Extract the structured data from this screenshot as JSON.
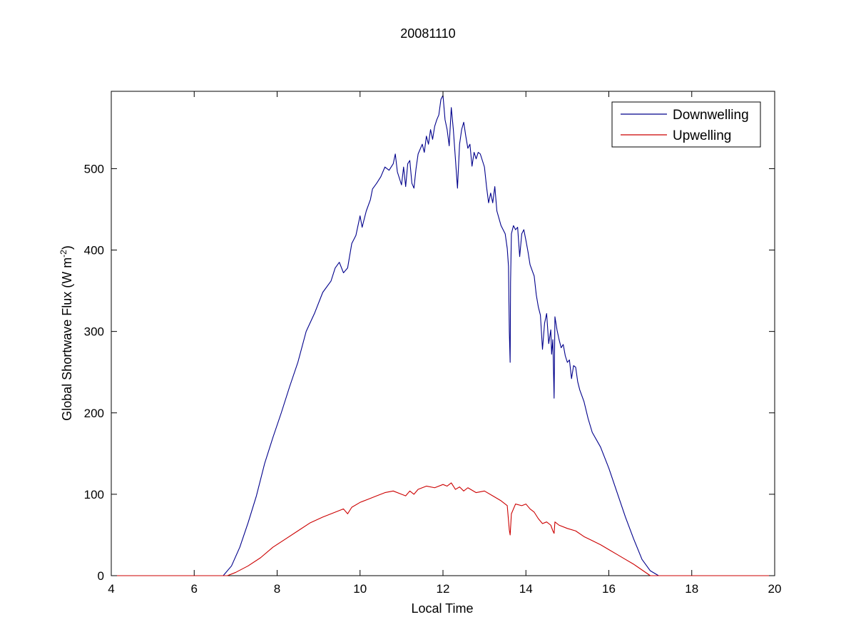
{
  "chart_data": {
    "type": "line",
    "title": "20081110",
    "xlabel": "Local Time",
    "ylabel": {
      "main": "Global Shortwave Flux (W m",
      "sup": "-2",
      "close": ")"
    },
    "xlim": [
      4,
      20
    ],
    "ylim": [
      0,
      595
    ],
    "xticks": [
      4,
      6,
      8,
      10,
      12,
      14,
      16,
      18,
      20
    ],
    "yticks": [
      0,
      100,
      200,
      300,
      400,
      500
    ],
    "grid": false,
    "legend_position": "top-right",
    "series": [
      {
        "name": "Downwelling",
        "color": "#00008b",
        "points": [
          [
            4.0,
            0
          ],
          [
            6.5,
            0
          ],
          [
            6.7,
            0
          ],
          [
            6.9,
            12
          ],
          [
            7.1,
            35
          ],
          [
            7.3,
            65
          ],
          [
            7.5,
            98
          ],
          [
            7.7,
            138
          ],
          [
            7.9,
            170
          ],
          [
            8.1,
            200
          ],
          [
            8.3,
            232
          ],
          [
            8.5,
            262
          ],
          [
            8.7,
            300
          ],
          [
            8.9,
            322
          ],
          [
            9.1,
            348
          ],
          [
            9.3,
            362
          ],
          [
            9.4,
            378
          ],
          [
            9.5,
            385
          ],
          [
            9.6,
            372
          ],
          [
            9.7,
            378
          ],
          [
            9.8,
            408
          ],
          [
            9.9,
            418
          ],
          [
            10.0,
            442
          ],
          [
            10.05,
            428
          ],
          [
            10.15,
            448
          ],
          [
            10.25,
            462
          ],
          [
            10.3,
            475
          ],
          [
            10.4,
            482
          ],
          [
            10.5,
            490
          ],
          [
            10.6,
            502
          ],
          [
            10.7,
            498
          ],
          [
            10.8,
            506
          ],
          [
            10.85,
            518
          ],
          [
            10.9,
            496
          ],
          [
            11.0,
            480
          ],
          [
            11.05,
            502
          ],
          [
            11.1,
            478
          ],
          [
            11.15,
            506
          ],
          [
            11.2,
            510
          ],
          [
            11.25,
            482
          ],
          [
            11.3,
            476
          ],
          [
            11.35,
            500
          ],
          [
            11.4,
            518
          ],
          [
            11.5,
            530
          ],
          [
            11.55,
            520
          ],
          [
            11.6,
            540
          ],
          [
            11.65,
            530
          ],
          [
            11.7,
            548
          ],
          [
            11.75,
            536
          ],
          [
            11.8,
            552
          ],
          [
            11.85,
            560
          ],
          [
            11.9,
            566
          ],
          [
            11.95,
            585
          ],
          [
            12.0,
            590
          ],
          [
            12.05,
            560
          ],
          [
            12.1,
            548
          ],
          [
            12.15,
            528
          ],
          [
            12.2,
            575
          ],
          [
            12.25,
            548
          ],
          [
            12.3,
            512
          ],
          [
            12.35,
            476
          ],
          [
            12.4,
            530
          ],
          [
            12.45,
            548
          ],
          [
            12.5,
            557
          ],
          [
            12.55,
            540
          ],
          [
            12.6,
            525
          ],
          [
            12.65,
            530
          ],
          [
            12.7,
            503
          ],
          [
            12.75,
            520
          ],
          [
            12.8,
            512
          ],
          [
            12.85,
            520
          ],
          [
            12.9,
            518
          ],
          [
            13.0,
            502
          ],
          [
            13.05,
            478
          ],
          [
            13.1,
            458
          ],
          [
            13.15,
            470
          ],
          [
            13.2,
            458
          ],
          [
            13.25,
            478
          ],
          [
            13.3,
            448
          ],
          [
            13.4,
            430
          ],
          [
            13.5,
            420
          ],
          [
            13.55,
            402
          ],
          [
            13.58,
            380
          ],
          [
            13.6,
            300
          ],
          [
            13.62,
            262
          ],
          [
            13.63,
            360
          ],
          [
            13.65,
            420
          ],
          [
            13.7,
            430
          ],
          [
            13.75,
            425
          ],
          [
            13.8,
            428
          ],
          [
            13.85,
            392
          ],
          [
            13.9,
            420
          ],
          [
            13.95,
            425
          ],
          [
            14.0,
            412
          ],
          [
            14.05,
            398
          ],
          [
            14.1,
            382
          ],
          [
            14.2,
            368
          ],
          [
            14.25,
            345
          ],
          [
            14.3,
            330
          ],
          [
            14.35,
            320
          ],
          [
            14.4,
            278
          ],
          [
            14.45,
            310
          ],
          [
            14.5,
            322
          ],
          [
            14.55,
            285
          ],
          [
            14.6,
            302
          ],
          [
            14.62,
            272
          ],
          [
            14.65,
            290
          ],
          [
            14.68,
            218
          ],
          [
            14.7,
            318
          ],
          [
            14.75,
            302
          ],
          [
            14.8,
            290
          ],
          [
            14.85,
            280
          ],
          [
            14.9,
            284
          ],
          [
            14.95,
            270
          ],
          [
            15.0,
            262
          ],
          [
            15.05,
            265
          ],
          [
            15.1,
            242
          ],
          [
            15.15,
            258
          ],
          [
            15.2,
            256
          ],
          [
            15.25,
            238
          ],
          [
            15.3,
            228
          ],
          [
            15.4,
            214
          ],
          [
            15.5,
            193
          ],
          [
            15.6,
            176
          ],
          [
            15.8,
            158
          ],
          [
            16.0,
            132
          ],
          [
            16.2,
            102
          ],
          [
            16.4,
            72
          ],
          [
            16.6,
            45
          ],
          [
            16.8,
            20
          ],
          [
            17.0,
            6
          ],
          [
            17.2,
            0
          ],
          [
            20.0,
            0
          ]
        ]
      },
      {
        "name": "Upwelling",
        "color": "#cc0000",
        "points": [
          [
            4.0,
            0
          ],
          [
            6.8,
            0
          ],
          [
            7.0,
            4
          ],
          [
            7.3,
            12
          ],
          [
            7.6,
            22
          ],
          [
            7.9,
            35
          ],
          [
            8.2,
            45
          ],
          [
            8.5,
            55
          ],
          [
            8.8,
            65
          ],
          [
            9.1,
            72
          ],
          [
            9.4,
            78
          ],
          [
            9.6,
            82
          ],
          [
            9.7,
            76
          ],
          [
            9.8,
            84
          ],
          [
            10.0,
            90
          ],
          [
            10.2,
            94
          ],
          [
            10.4,
            98
          ],
          [
            10.6,
            102
          ],
          [
            10.8,
            104
          ],
          [
            11.0,
            100
          ],
          [
            11.1,
            98
          ],
          [
            11.2,
            104
          ],
          [
            11.3,
            100
          ],
          [
            11.4,
            106
          ],
          [
            11.6,
            110
          ],
          [
            11.8,
            108
          ],
          [
            12.0,
            112
          ],
          [
            12.1,
            110
          ],
          [
            12.2,
            114
          ],
          [
            12.3,
            106
          ],
          [
            12.4,
            109
          ],
          [
            12.5,
            104
          ],
          [
            12.6,
            108
          ],
          [
            12.8,
            102
          ],
          [
            13.0,
            104
          ],
          [
            13.2,
            98
          ],
          [
            13.4,
            92
          ],
          [
            13.55,
            86
          ],
          [
            13.6,
            56
          ],
          [
            13.62,
            50
          ],
          [
            13.65,
            76
          ],
          [
            13.75,
            88
          ],
          [
            13.9,
            86
          ],
          [
            14.0,
            88
          ],
          [
            14.1,
            82
          ],
          [
            14.2,
            78
          ],
          [
            14.3,
            70
          ],
          [
            14.4,
            64
          ],
          [
            14.5,
            66
          ],
          [
            14.6,
            62
          ],
          [
            14.65,
            55
          ],
          [
            14.68,
            52
          ],
          [
            14.7,
            66
          ],
          [
            14.8,
            62
          ],
          [
            15.0,
            58
          ],
          [
            15.2,
            55
          ],
          [
            15.4,
            48
          ],
          [
            15.6,
            43
          ],
          [
            15.8,
            38
          ],
          [
            16.0,
            32
          ],
          [
            16.2,
            26
          ],
          [
            16.4,
            20
          ],
          [
            16.6,
            14
          ],
          [
            16.8,
            7
          ],
          [
            17.0,
            0
          ],
          [
            20.0,
            0
          ]
        ]
      }
    ]
  }
}
